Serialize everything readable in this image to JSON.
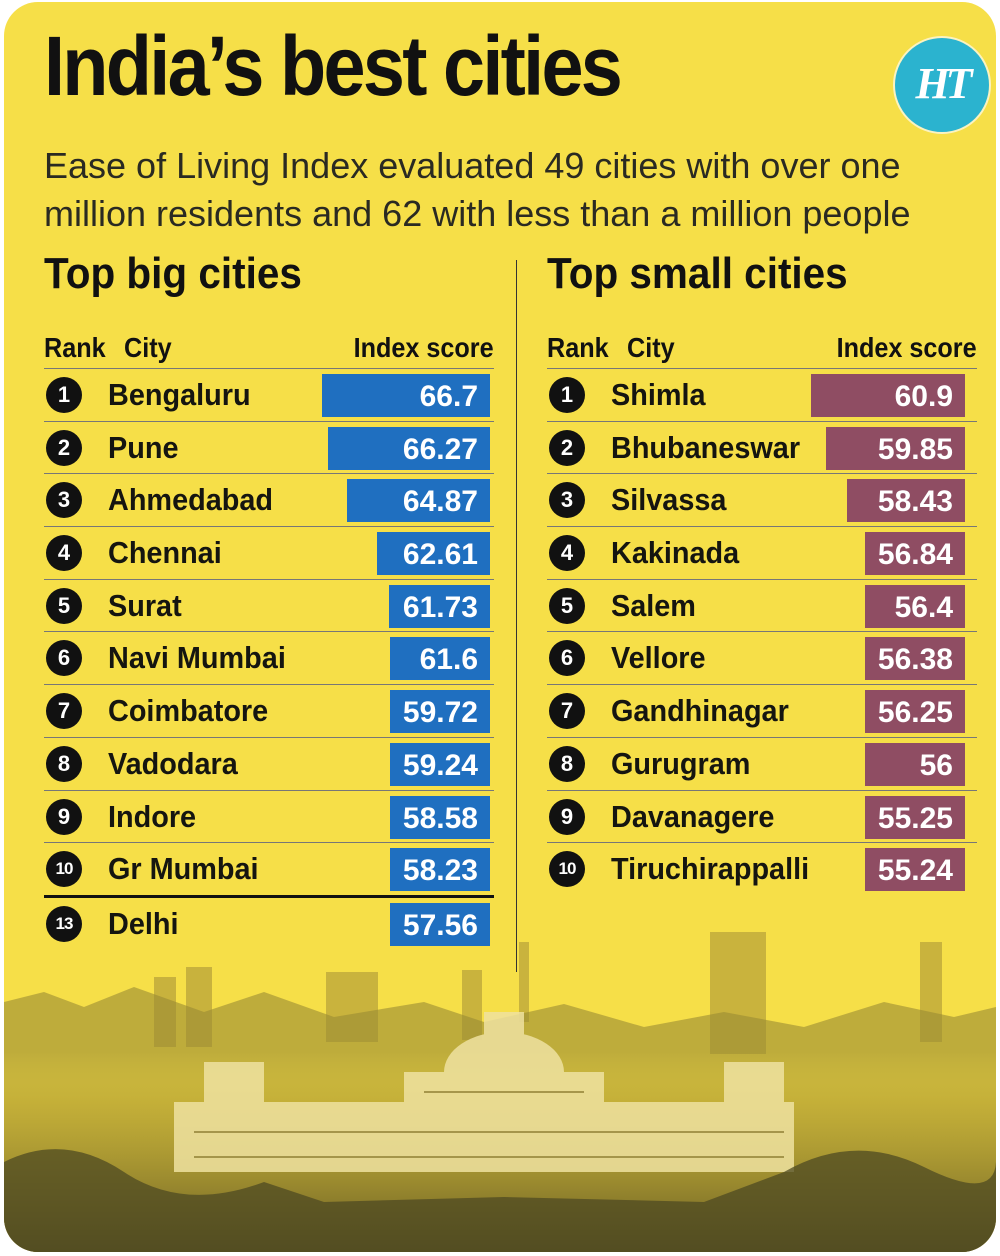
{
  "header": {
    "title": "India’s best cities",
    "subtitle": "Ease of Living Index evaluated 49 cities with over one million residents and 62 with less than a million people",
    "logo": "HT"
  },
  "colors": {
    "background": "#f6df48",
    "big_bar": "#1f6fc0",
    "small_bar": "#8f4d63",
    "logo": "#2bb3cf"
  },
  "big": {
    "heading": "Top big cities",
    "col_rank": "Rank",
    "col_city": "City",
    "col_score": "Index score",
    "rows": [
      {
        "rank": "1",
        "city": "Bengaluru",
        "score": "66.7"
      },
      {
        "rank": "2",
        "city": "Pune",
        "score": "66.27"
      },
      {
        "rank": "3",
        "city": "Ahmedabad",
        "score": "64.87"
      },
      {
        "rank": "4",
        "city": "Chennai",
        "score": "62.61"
      },
      {
        "rank": "5",
        "city": "Surat",
        "score": "61.73"
      },
      {
        "rank": "6",
        "city": "Navi Mumbai",
        "score": "61.6"
      },
      {
        "rank": "7",
        "city": "Coimbatore",
        "score": "59.72"
      },
      {
        "rank": "8",
        "city": "Vadodara",
        "score": "59.24"
      },
      {
        "rank": "9",
        "city": "Indore",
        "score": "58.58"
      },
      {
        "rank": "10",
        "city": "Gr  Mumbai",
        "score": "58.23"
      },
      {
        "rank": "13",
        "city": "Delhi",
        "score": "57.56"
      }
    ]
  },
  "small": {
    "heading": "Top small cities",
    "col_rank": "Rank",
    "col_city": "City",
    "col_score": "Index score",
    "rows": [
      {
        "rank": "1",
        "city": "Shimla",
        "score": "60.9"
      },
      {
        "rank": "2",
        "city": "Bhubaneswar",
        "score": "59.85"
      },
      {
        "rank": "3",
        "city": "Silvassa",
        "score": "58.43"
      },
      {
        "rank": "4",
        "city": "Kakinada",
        "score": "56.84"
      },
      {
        "rank": "5",
        "city": "Salem",
        "score": "56.4"
      },
      {
        "rank": "6",
        "city": "Vellore",
        "score": "56.38"
      },
      {
        "rank": "7",
        "city": "Gandhinagar",
        "score": "56.25"
      },
      {
        "rank": "8",
        "city": "Gurugram",
        "score": "56"
      },
      {
        "rank": "9",
        "city": "Davanagere",
        "score": "55.25"
      },
      {
        "rank": "10",
        "city": "Tiruchirappalli",
        "score": "55.24"
      }
    ]
  },
  "chart_data": [
    {
      "type": "bar",
      "title": "Top big cities",
      "categories": [
        "Bengaluru",
        "Pune",
        "Ahmedabad",
        "Chennai",
        "Surat",
        "Navi Mumbai",
        "Coimbatore",
        "Vadodara",
        "Indore",
        "Gr  Mumbai",
        "Delhi"
      ],
      "ranks": [
        1,
        2,
        3,
        4,
        5,
        6,
        7,
        8,
        9,
        10,
        13
      ],
      "values": [
        66.7,
        66.27,
        64.87,
        62.61,
        61.73,
        61.6,
        59.72,
        59.24,
        58.58,
        58.23,
        57.56
      ],
      "orientation": "horizontal"
    },
    {
      "type": "bar",
      "title": "Top small cities",
      "categories": [
        "Shimla",
        "Bhubaneswar",
        "Silvassa",
        "Kakinada",
        "Salem",
        "Vellore",
        "Gandhinagar",
        "Gurugram",
        "Davanagere",
        "Tiruchirappalli"
      ],
      "ranks": [
        1,
        2,
        3,
        4,
        5,
        6,
        7,
        8,
        9,
        10
      ],
      "values": [
        60.9,
        59.85,
        58.43,
        56.84,
        56.4,
        56.38,
        56.25,
        56,
        55.25,
        55.24
      ],
      "orientation": "horizontal"
    }
  ]
}
